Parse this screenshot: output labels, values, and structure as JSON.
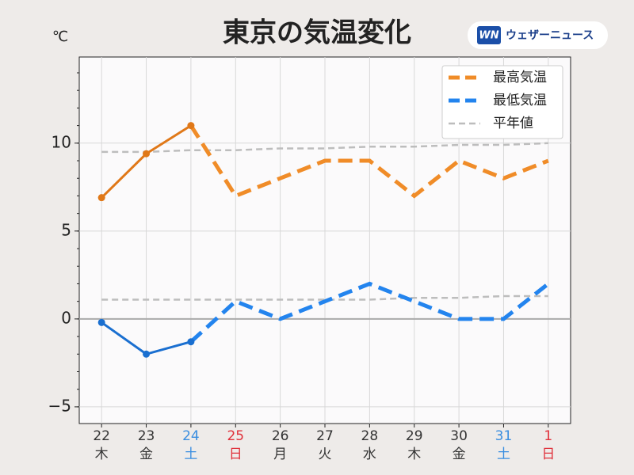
{
  "chart_data": {
    "type": "line",
    "title": "東京の気温変化",
    "y_unit": "℃",
    "logo": {
      "mark": "WN",
      "text": "ウェザーニュース"
    },
    "categories": [
      "22",
      "23",
      "24",
      "25",
      "26",
      "27",
      "28",
      "29",
      "30",
      "31",
      "1"
    ],
    "weekdays": [
      "木",
      "金",
      "土",
      "日",
      "月",
      "火",
      "水",
      "木",
      "金",
      "土",
      "日"
    ],
    "label_colors": [
      "#333333",
      "#333333",
      "#3a8ee0",
      "#e0303a",
      "#333333",
      "#333333",
      "#333333",
      "#333333",
      "#333333",
      "#3a8ee0",
      "#e0303a"
    ],
    "dash_from_index": 2,
    "series": [
      {
        "name": "最高気温",
        "color": "#f08c28",
        "observed_color": "#e07818",
        "values": [
          6.9,
          9.4,
          11,
          7,
          8,
          9,
          9,
          7,
          9,
          8,
          9
        ]
      },
      {
        "name": "最低気温",
        "color": "#2384ee",
        "observed_color": "#1a6fd0",
        "values": [
          -0.2,
          -2,
          -1.3,
          1,
          0,
          1,
          2,
          1,
          0,
          0,
          2
        ]
      }
    ],
    "normals": {
      "name": "平年値",
      "color": "#bdbdbd",
      "high": [
        9.5,
        9.5,
        9.6,
        9.6,
        9.7,
        9.7,
        9.8,
        9.8,
        9.9,
        9.9,
        10.0
      ],
      "low": [
        1.1,
        1.1,
        1.1,
        1.1,
        1.1,
        1.1,
        1.1,
        1.2,
        1.2,
        1.3,
        1.3
      ]
    },
    "ylim": [
      -5.95,
      14.9
    ],
    "yticks": [
      {
        "value": -5,
        "label": "−5"
      },
      0,
      5,
      10
    ],
    "yminorticks": [
      -5,
      -4,
      -3,
      -2,
      -1,
      0,
      1,
      2,
      3,
      4,
      5,
      6,
      7,
      8,
      9,
      10,
      11,
      12,
      13,
      14
    ],
    "grid": true,
    "legend": "upper right"
  }
}
